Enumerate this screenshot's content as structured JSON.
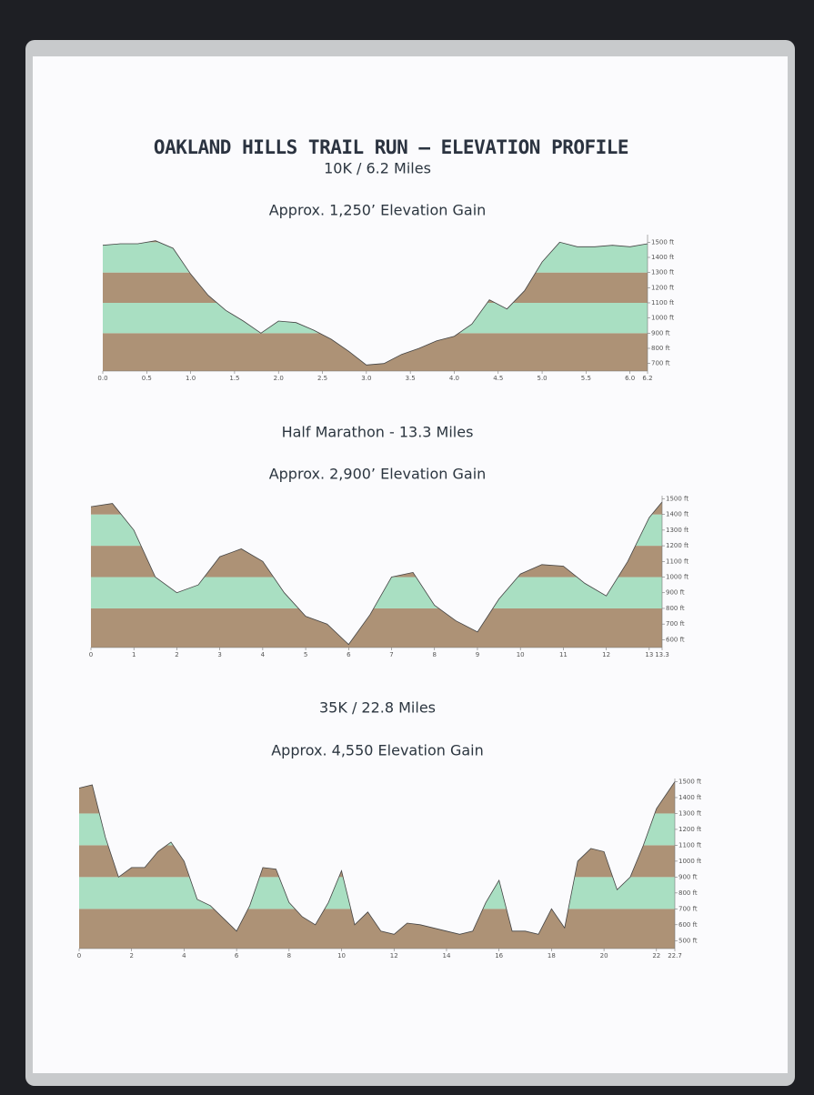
{
  "title": "OAKLAND HILLS TRAIL RUN – ELEVATION PROFILE",
  "chart_data": [
    {
      "type": "area",
      "title": "10K / 6.2 Miles",
      "subtitle": "Approx. 1,250’ Elevation Gain",
      "colors": [
        "#ad9276",
        "#a9dfc2"
      ],
      "line_color": "#444444",
      "x": [
        0,
        0.2,
        0.4,
        0.6,
        0.8,
        1.0,
        1.2,
        1.4,
        1.6,
        1.8,
        2.0,
        2.2,
        2.4,
        2.6,
        2.8,
        3.0,
        3.2,
        3.4,
        3.6,
        3.8,
        4.0,
        4.2,
        4.4,
        4.6,
        4.8,
        5.0,
        5.2,
        5.4,
        5.6,
        5.8,
        6.0,
        6.2
      ],
      "values": [
        1480,
        1490,
        1490,
        1510,
        1460,
        1290,
        1150,
        1050,
        980,
        900,
        980,
        970,
        920,
        860,
        780,
        690,
        700,
        760,
        800,
        850,
        880,
        960,
        1120,
        1060,
        1180,
        1370,
        1500,
        1470,
        1470,
        1480,
        1470,
        1490
      ],
      "xlim": [
        0,
        6.2
      ],
      "ylim": [
        650,
        1550
      ],
      "xticks": [
        {
          "value": 0,
          "label": "0.0"
        },
        0.5,
        {
          "value": 1,
          "label": "1.0"
        },
        1.5,
        {
          "value": 2,
          "label": "2.0"
        },
        2.5,
        {
          "value": 3,
          "label": "3.0"
        },
        3.5,
        {
          "value": 4,
          "label": "4.0"
        },
        4.5,
        {
          "value": 5,
          "label": "5.0"
        },
        5.5,
        {
          "value": 6,
          "label": "6.0"
        },
        6.2
      ],
      "yticks": [
        {
          "value": 700,
          "label": "700 ft"
        },
        {
          "value": 800,
          "label": "800 ft"
        },
        {
          "value": 900,
          "label": "900 ft"
        },
        {
          "value": 1000,
          "label": "1000 ft"
        },
        {
          "value": 1100,
          "label": "1100 ft"
        },
        {
          "value": 1200,
          "label": "1200 ft"
        },
        {
          "value": 1300,
          "label": "1300 ft"
        },
        {
          "value": 1400,
          "label": "1400 ft"
        },
        {
          "value": 1500,
          "label": "1500 ft"
        }
      ]
    },
    {
      "type": "area",
      "title": "Half Marathon - 13.3 Miles",
      "subtitle": "Approx. 2,900’ Elevation Gain",
      "colors": [
        "#ad9276",
        "#a9dfc2"
      ],
      "line_color": "#444444",
      "x": [
        0,
        0.5,
        1,
        1.5,
        2,
        2.5,
        3,
        3.5,
        4,
        4.5,
        5,
        5.5,
        6,
        6.5,
        7,
        7.5,
        8,
        8.5,
        9,
        9.5,
        10,
        10.5,
        11,
        11.5,
        12,
        12.5,
        13,
        13.3
      ],
      "values": [
        1450,
        1470,
        1300,
        1000,
        900,
        950,
        1130,
        1180,
        1100,
        900,
        750,
        700,
        570,
        760,
        1000,
        1030,
        820,
        720,
        650,
        860,
        1020,
        1080,
        1070,
        960,
        880,
        1100,
        1380,
        1480
      ],
      "xlim": [
        0,
        13.3
      ],
      "ylim": [
        550,
        1520
      ],
      "xticks": [
        0,
        1,
        2,
        3,
        4,
        5,
        6,
        7,
        8,
        9,
        10,
        11,
        12,
        13,
        13.3
      ],
      "yticks": [
        {
          "value": 600,
          "label": "600 ft"
        },
        {
          "value": 700,
          "label": "700 ft"
        },
        {
          "value": 800,
          "label": "800 ft"
        },
        {
          "value": 900,
          "label": "900 ft"
        },
        {
          "value": 1000,
          "label": "1000 ft"
        },
        {
          "value": 1100,
          "label": "1100 ft"
        },
        {
          "value": 1200,
          "label": "1200 ft"
        },
        {
          "value": 1300,
          "label": "1300 ft"
        },
        {
          "value": 1400,
          "label": "1400 ft"
        },
        {
          "value": 1500,
          "label": "1500 ft"
        }
      ]
    },
    {
      "type": "area",
      "title": "35K / 22.8 Miles",
      "subtitle": "Approx. 4,550 Elevation Gain",
      "colors": [
        "#ad9276",
        "#a9dfc2"
      ],
      "line_color": "#444444",
      "x": [
        0,
        0.5,
        1,
        1.5,
        2,
        2.5,
        3,
        3.5,
        4,
        4.5,
        5,
        5.5,
        6,
        6.5,
        7,
        7.5,
        8,
        8.5,
        9,
        9.5,
        10,
        10.5,
        11,
        11.5,
        12,
        12.5,
        13,
        13.5,
        14,
        14.5,
        15,
        15.5,
        16,
        16.5,
        17,
        17.5,
        18,
        18.5,
        19,
        19.5,
        20,
        20.5,
        21,
        21.5,
        22,
        22.7
      ],
      "values": [
        1460,
        1480,
        1150,
        900,
        960,
        960,
        1060,
        1120,
        1000,
        760,
        720,
        640,
        560,
        720,
        960,
        950,
        740,
        650,
        600,
        740,
        940,
        600,
        680,
        560,
        540,
        610,
        600,
        580,
        560,
        540,
        560,
        740,
        880,
        560,
        560,
        540,
        700,
        580,
        1000,
        1080,
        1060,
        820,
        900,
        1100,
        1330,
        1500
      ],
      "xlim": [
        0,
        22.7
      ],
      "ylim": [
        450,
        1520
      ],
      "xticks": [
        0,
        2,
        4,
        6,
        8,
        10,
        12,
        14,
        16,
        18,
        20,
        22,
        22.7
      ],
      "yticks": [
        {
          "value": 500,
          "label": "500 ft"
        },
        {
          "value": 600,
          "label": "600 ft"
        },
        {
          "value": 700,
          "label": "700 ft"
        },
        {
          "value": 800,
          "label": "800 ft"
        },
        {
          "value": 900,
          "label": "900 ft"
        },
        {
          "value": 1000,
          "label": "1000 ft"
        },
        {
          "value": 1100,
          "label": "1100 ft"
        },
        {
          "value": 1200,
          "label": "1200 ft"
        },
        {
          "value": 1300,
          "label": "1300 ft"
        },
        {
          "value": 1400,
          "label": "1400 ft"
        },
        {
          "value": 1500,
          "label": "1500 ft"
        }
      ]
    }
  ]
}
